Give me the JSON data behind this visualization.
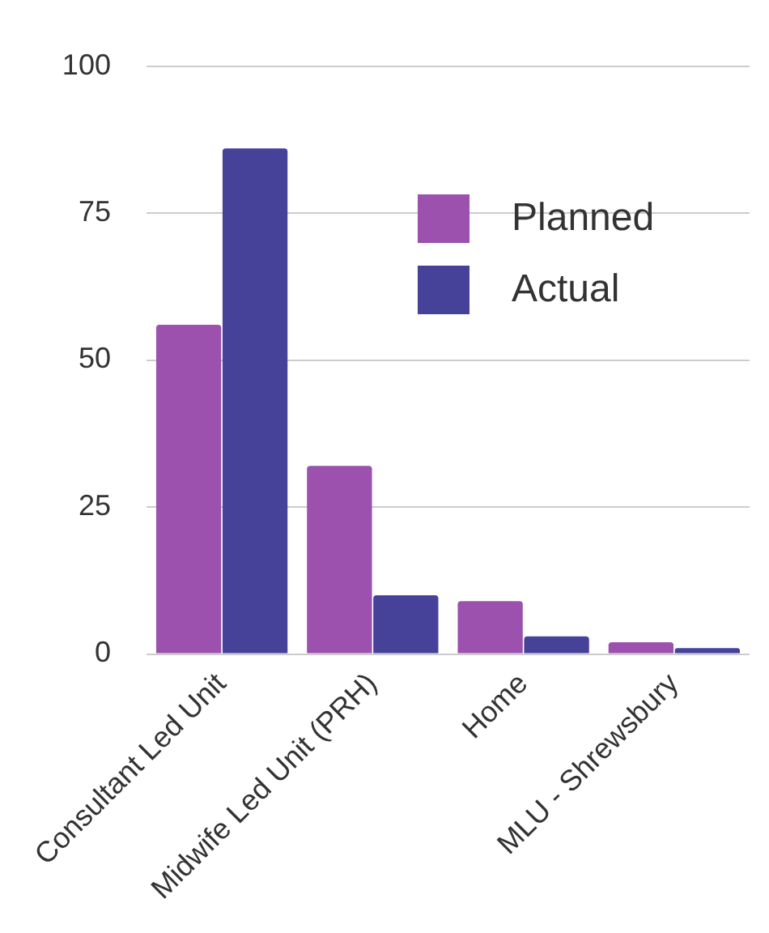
{
  "chart_data": {
    "type": "bar",
    "categories": [
      "Consultant Led Unit",
      "Midwife Led Unit (PRH)",
      "Home",
      "MLU - Shrewsbury"
    ],
    "series": [
      {
        "name": "Planned",
        "color": "#9b51ad",
        "values": [
          56,
          32,
          9,
          2
        ]
      },
      {
        "name": "Actual",
        "color": "#46429a",
        "values": [
          86,
          10,
          3,
          1
        ]
      }
    ],
    "ylim": [
      0,
      100
    ],
    "yticks": [
      0,
      25,
      50,
      75,
      100
    ],
    "grid": "y",
    "legend": "top right"
  }
}
